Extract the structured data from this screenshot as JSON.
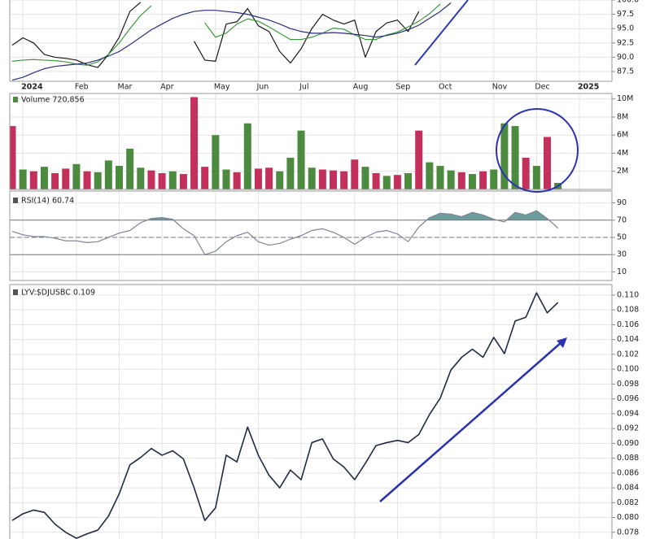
{
  "chart_data": [
    {
      "type": "line",
      "categories": [
        null,
        "2024",
        null,
        null,
        null,
        null,
        "Feb",
        null,
        null,
        null,
        "Mar",
        null,
        null,
        null,
        "Apr",
        null,
        null,
        null,
        null,
        "May",
        null,
        null,
        null,
        "Jun",
        null,
        null,
        null,
        "Jul",
        null,
        null,
        null,
        null,
        "Aug",
        null,
        null,
        null,
        "Sep",
        null,
        null,
        null,
        "Oct",
        null,
        null,
        null,
        null,
        "Nov",
        null,
        null,
        null,
        "Dec",
        null,
        null,
        null,
        "2025"
      ],
      "ylim": [
        85.8,
        100
      ],
      "yticks": [
        {
          "value": 100,
          "label": "100.0"
        },
        97.5,
        {
          "value": 95,
          "label": "95.0"
        },
        92.5,
        {
          "value": 90,
          "label": "90.0"
        },
        87.5
      ],
      "grid": true,
      "series": [
        {
          "color": "#1a1a1a",
          "values": [
            92.1,
            93.4,
            92.5,
            90.5,
            90.0,
            89.8,
            89.5,
            88.7,
            88.2,
            90.5,
            93.5,
            98.0,
            99.6,
            null,
            null,
            null,
            null,
            92.8,
            89.5,
            89.3,
            95.8,
            96.2,
            98.5,
            95.5,
            94.5,
            91.0,
            89.0,
            91.5,
            95.0,
            97.5,
            96.5,
            95.8,
            96.5,
            90.0,
            94.5,
            96.0,
            96.5,
            94.5,
            98.0,
            null,
            null,
            null,
            null,
            null,
            null,
            null,
            null,
            null,
            null,
            null,
            null,
            null,
            null,
            null
          ]
        },
        {
          "color": "#3c9a3c",
          "values": [
            89.3,
            89.5,
            89.6,
            89.5,
            89.4,
            89.2,
            88.8,
            88.6,
            89.2,
            90.5,
            92.5,
            95.0,
            97.3,
            99.0,
            null,
            null,
            null,
            null,
            96.0,
            93.5,
            94.2,
            95.8,
            96.7,
            96.3,
            95.3,
            94.2,
            93.1,
            93.1,
            93.5,
            94.2,
            95.1,
            94.9,
            93.9,
            93.1,
            93.1,
            93.9,
            94.4,
            95.3,
            96.3,
            97.6,
            99.3,
            null,
            null,
            null,
            null,
            null,
            null,
            null,
            null,
            null,
            null,
            null,
            null,
            null
          ]
        },
        {
          "color": "#2b2f7a",
          "values": [
            86.0,
            86.5,
            87.3,
            88.0,
            88.4,
            88.6,
            88.8,
            89.0,
            89.5,
            90.2,
            91.0,
            92.2,
            93.5,
            94.8,
            95.8,
            96.8,
            97.5,
            98.0,
            98.2,
            98.2,
            98.0,
            97.8,
            97.5,
            97.0,
            96.5,
            95.8,
            95.0,
            94.5,
            94.2,
            94.2,
            94.3,
            94.2,
            94.0,
            93.8,
            93.5,
            93.8,
            94.2,
            94.8,
            95.6,
            96.8,
            98.0,
            99.5,
            null,
            null,
            null,
            null,
            null,
            null,
            null,
            null,
            null,
            null,
            null,
            null
          ]
        }
      ]
    },
    {
      "type": "bar",
      "title": "Volume 720,856",
      "ylim": [
        0,
        10600000
      ],
      "yticks": [
        {
          "value": 10000000,
          "label": "10M"
        },
        {
          "value": 8000000,
          "label": "8M"
        },
        {
          "value": 6000000,
          "label": "6M"
        },
        {
          "value": 4000000,
          "label": "4M"
        },
        {
          "value": 2000000,
          "label": "2M"
        }
      ],
      "grid": true,
      "values": [
        7000000,
        2200000,
        2000000,
        2500000,
        1800000,
        2300000,
        2800000,
        2000000,
        1900000,
        3200000,
        2600000,
        4500000,
        2400000,
        2100000,
        1800000,
        2000000,
        1700000,
        10200000,
        2500000,
        6000000,
        2200000,
        1900000,
        7300000,
        2300000,
        2400000,
        2000000,
        3500000,
        6500000,
        2400000,
        2200000,
        2100000,
        2000000,
        3300000,
        2500000,
        1800000,
        1500000,
        1600000,
        1800000,
        6500000,
        3000000,
        2600000,
        2100000,
        1900000,
        1700000,
        2000000,
        2200000,
        7300000,
        7000000,
        3500000,
        2600000,
        5800000,
        720856,
        null,
        null
      ],
      "colors": [
        "#c4305c",
        "#4c8a3f",
        "#c4305c",
        "#4c8a3f",
        "#c4305c",
        "#c4305c",
        "#4c8a3f",
        "#c4305c",
        "#4c8a3f",
        "#4c8a3f",
        "#4c8a3f",
        "#4c8a3f",
        "#4c8a3f",
        "#c4305c",
        "#c4305c",
        "#4c8a3f",
        "#c4305c",
        "#c4305c",
        "#c4305c",
        "#4c8a3f",
        "#4c8a3f",
        "#c4305c",
        "#4c8a3f",
        "#c4305c",
        "#c4305c",
        "#4c8a3f",
        "#4c8a3f",
        "#4c8a3f",
        "#4c8a3f",
        "#c4305c",
        "#c4305c",
        "#c4305c",
        "#c4305c",
        "#4c8a3f",
        "#c4305c",
        "#4c8a3f",
        "#c4305c",
        "#4c8a3f",
        "#c4305c",
        "#4c8a3f",
        "#4c8a3f",
        "#4c8a3f",
        "#c4305c",
        "#4c8a3f",
        "#c4305c",
        "#4c8a3f",
        "#4c8a3f",
        "#4c8a3f",
        "#c4305c",
        "#4c8a3f",
        "#c4305c",
        "#4c8a3f",
        null,
        null
      ]
    },
    {
      "type": "line",
      "title": "RSI(14) 60.74",
      "ylim": [
        0,
        100
      ],
      "yticks": [
        90,
        70,
        50,
        30,
        10
      ],
      "grid": true,
      "hlines": [
        70,
        50,
        30
      ],
      "hline_styles": [
        "solid",
        "dashed",
        "solid"
      ],
      "fill_color": "#6d9c9c",
      "series": [
        {
          "color": "#7d8597",
          "values": [
            57,
            53,
            51,
            51,
            49,
            46,
            46,
            44,
            45,
            50,
            55,
            58,
            67,
            72,
            73,
            71,
            60,
            52,
            30,
            34,
            45,
            52,
            56,
            45,
            41,
            43,
            48,
            52,
            58,
            60,
            56,
            50,
            42,
            50,
            56,
            58,
            54,
            45,
            62,
            73,
            78,
            77,
            74,
            79,
            76,
            71,
            68,
            79,
            76,
            81,
            72,
            60.74,
            null,
            null
          ]
        }
      ]
    },
    {
      "type": "line",
      "title": "LYV:$DJUSBC 0.109",
      "ylim": [
        0.0771,
        0.1112
      ],
      "yticks": [
        {
          "value": 0.11,
          "label": "0.110"
        },
        0.108,
        0.106,
        0.104,
        0.102,
        {
          "value": 0.1,
          "label": "0.100"
        },
        0.098,
        0.096,
        0.094,
        0.092,
        {
          "value": 0.09,
          "label": "0.090"
        },
        0.088,
        0.086,
        0.084,
        0.082,
        {
          "value": 0.08,
          "label": "0.080"
        },
        0.078
      ],
      "grid": true,
      "series": [
        {
          "color": "#222b45",
          "values": [
            0.0796,
            0.0805,
            0.081,
            0.0807,
            0.0791,
            0.078,
            0.0772,
            0.0778,
            0.0783,
            0.0802,
            0.0832,
            0.0871,
            0.0881,
            0.0893,
            0.0884,
            0.089,
            0.0879,
            0.084,
            0.0796,
            0.0813,
            0.0884,
            0.0875,
            0.0922,
            0.0884,
            0.0857,
            0.084,
            0.0864,
            0.0851,
            0.0901,
            0.0906,
            0.0879,
            0.0868,
            0.0851,
            0.0873,
            0.0897,
            0.0901,
            0.0904,
            0.0901,
            0.0912,
            0.0939,
            0.0961,
            0.0999,
            0.1016,
            0.1027,
            0.1016,
            0.1043,
            0.1021,
            0.1065,
            0.107,
            0.1103,
            0.1076,
            0.109,
            null,
            null
          ]
        }
      ]
    }
  ]
}
